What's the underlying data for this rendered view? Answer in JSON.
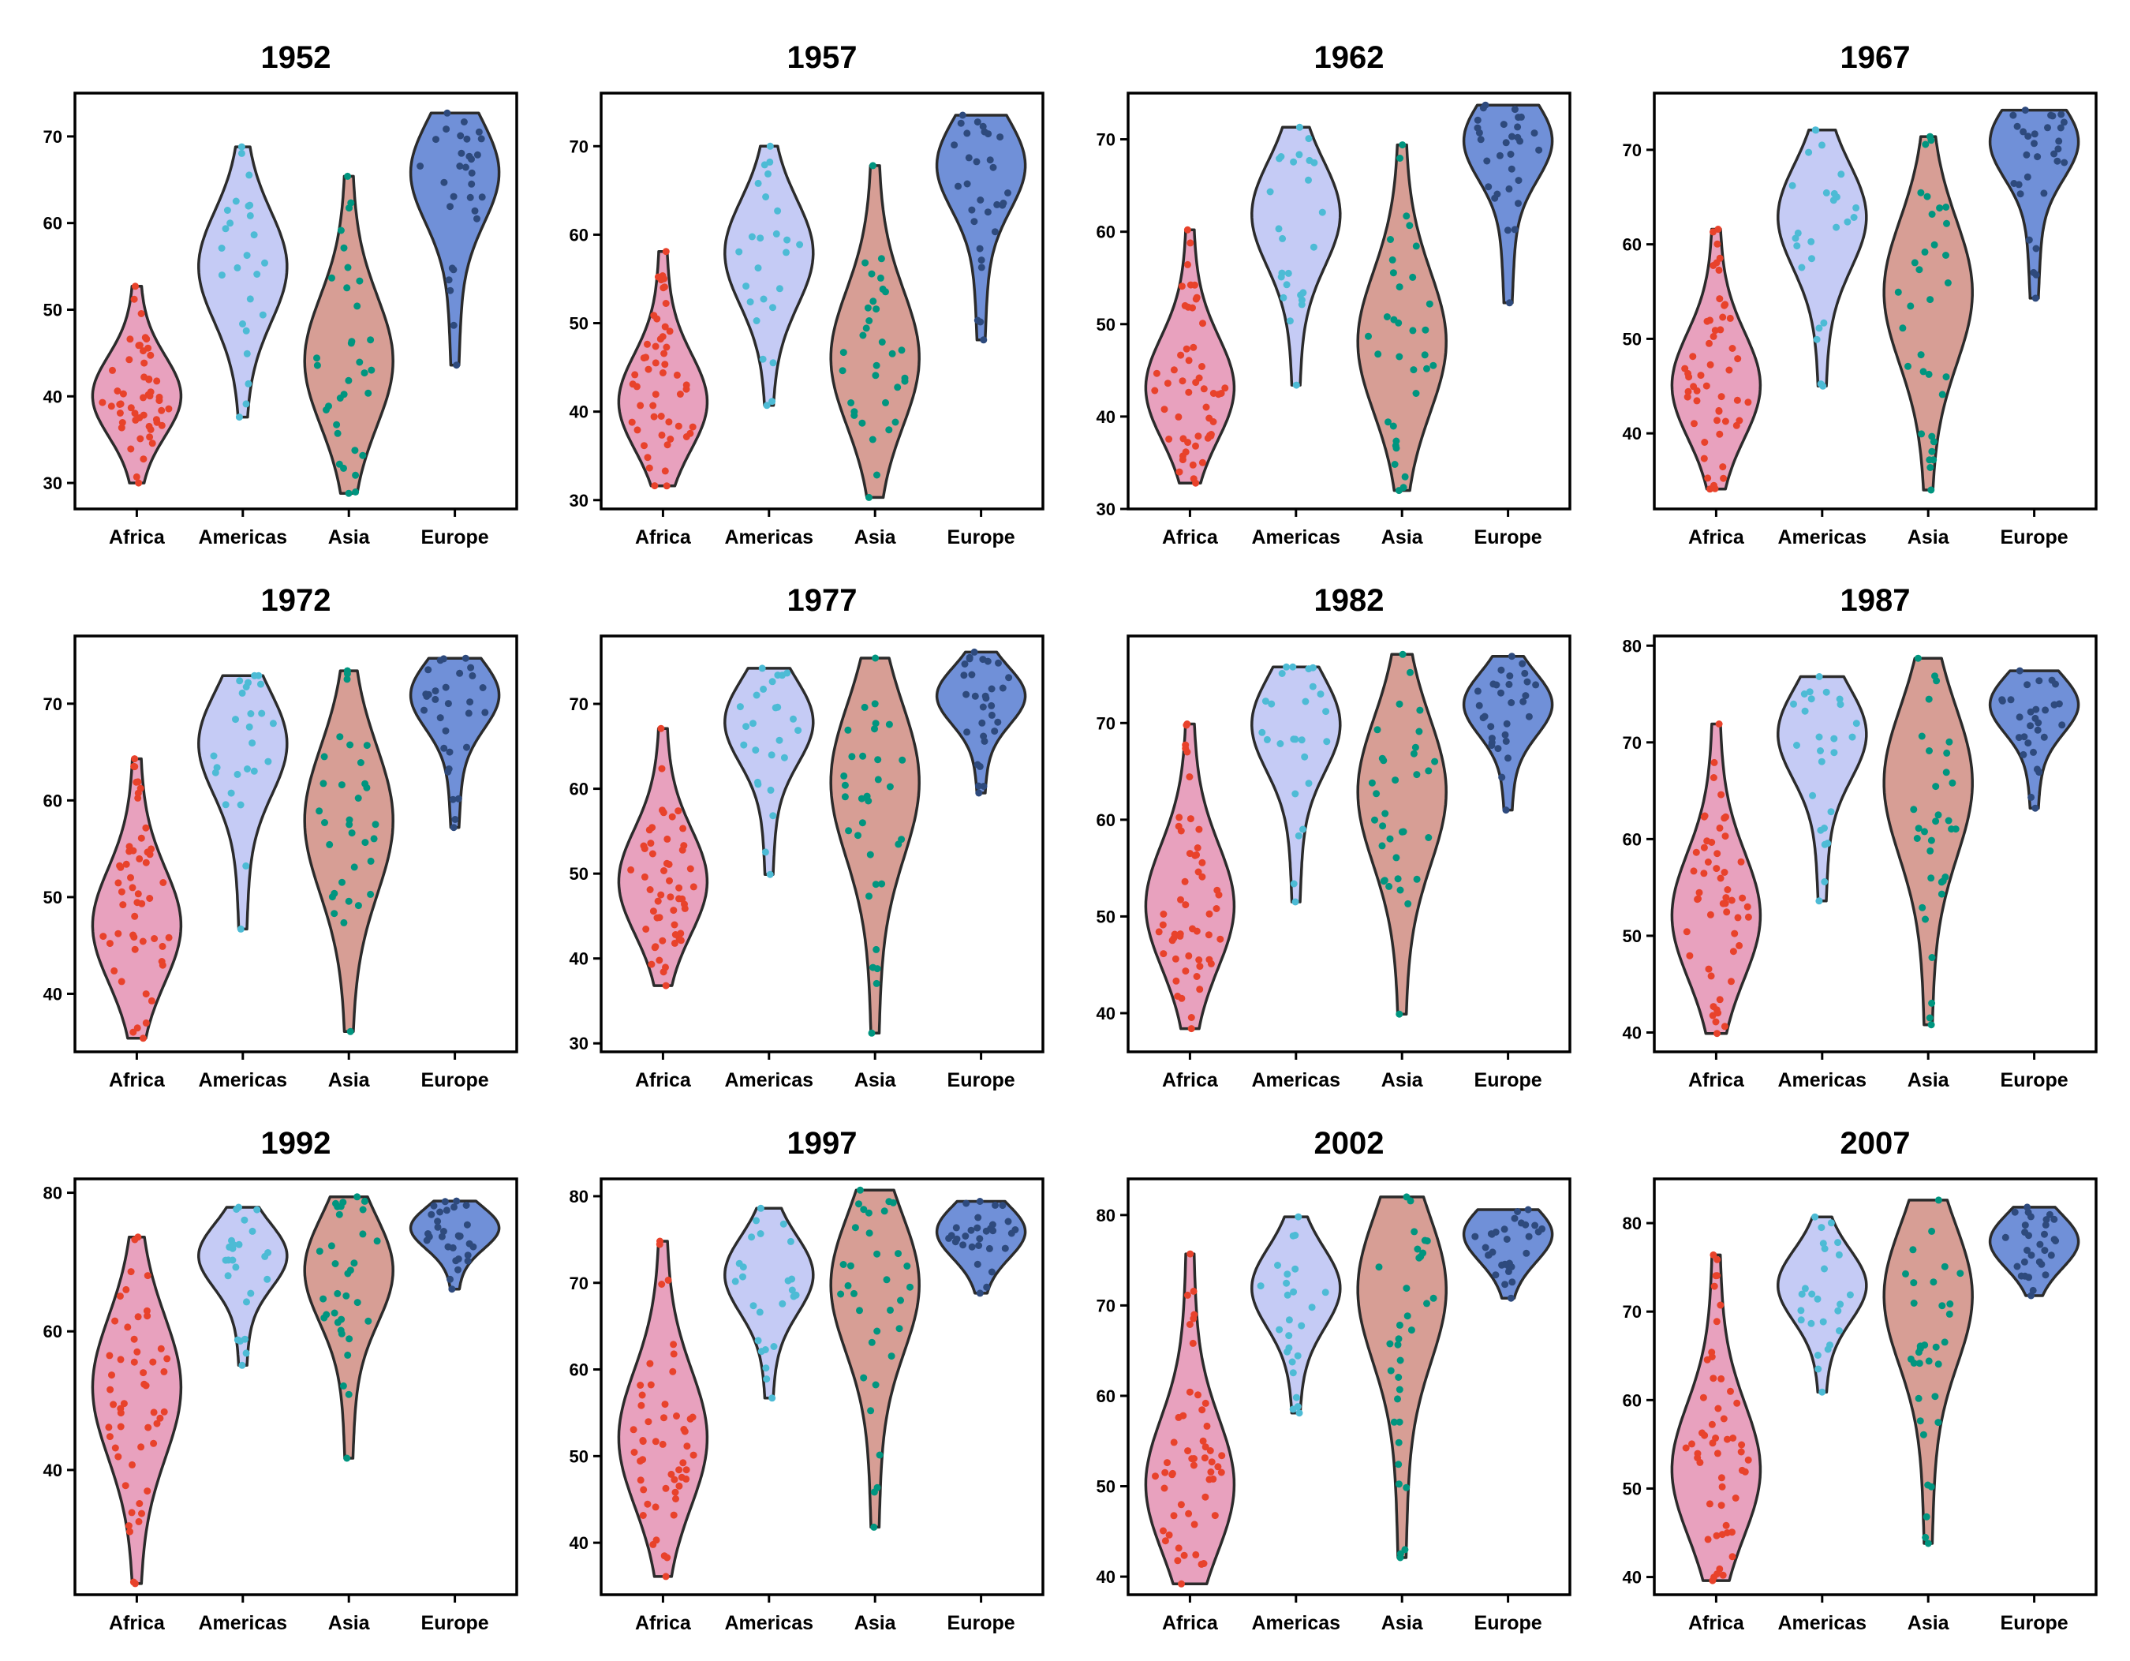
{
  "chart_data": {
    "type": "violin",
    "categories": [
      "Africa",
      "Americas",
      "Asia",
      "Europe"
    ],
    "colors": {
      "Africa": {
        "fill": "#E8A1BE",
        "point": "#E8422B"
      },
      "Americas": {
        "fill": "#C5CBF5",
        "point": "#4DBBD5"
      },
      "Asia": {
        "fill": "#D79E95",
        "point": "#00957F"
      },
      "Europe": {
        "fill": "#7090D8",
        "point": "#2E4A7D"
      }
    },
    "panels": [
      {
        "title": "1952",
        "yticks": [
          30,
          40,
          50,
          60,
          70
        ],
        "ylim": [
          27,
          75
        ],
        "violins": [
          {
            "category": "Africa",
            "min": 30.0,
            "max": 52.7,
            "mode": 40.0,
            "n": 52
          },
          {
            "category": "Americas",
            "min": 37.6,
            "max": 68.8,
            "mode": 55.0,
            "n": 25
          },
          {
            "category": "Asia",
            "min": 28.8,
            "max": 65.4,
            "mode": 44.0,
            "n": 33
          },
          {
            "category": "Europe",
            "min": 43.6,
            "max": 72.7,
            "mode": 66.0,
            "n": 30
          }
        ]
      },
      {
        "title": "1957",
        "yticks": [
          30,
          40,
          50,
          60,
          70
        ],
        "ylim": [
          29,
          76
        ],
        "violins": [
          {
            "category": "Africa",
            "min": 31.6,
            "max": 58.1,
            "mode": 41.0,
            "n": 52
          },
          {
            "category": "Americas",
            "min": 40.7,
            "max": 70.0,
            "mode": 58.0,
            "n": 25
          },
          {
            "category": "Asia",
            "min": 30.3,
            "max": 67.8,
            "mode": 46.0,
            "n": 33
          },
          {
            "category": "Europe",
            "min": 48.1,
            "max": 73.5,
            "mode": 68.0,
            "n": 30
          }
        ]
      },
      {
        "title": "1962",
        "yticks": [
          30,
          40,
          50,
          60,
          70
        ],
        "ylim": [
          30,
          75
        ],
        "violins": [
          {
            "category": "Africa",
            "min": 32.8,
            "max": 60.2,
            "mode": 43.0,
            "n": 52
          },
          {
            "category": "Americas",
            "min": 43.4,
            "max": 71.3,
            "mode": 62.0,
            "n": 25
          },
          {
            "category": "Asia",
            "min": 32.0,
            "max": 69.4,
            "mode": 48.0,
            "n": 33
          },
          {
            "category": "Europe",
            "min": 52.3,
            "max": 73.7,
            "mode": 70.0,
            "n": 30
          }
        ]
      },
      {
        "title": "1967",
        "yticks": [
          40,
          50,
          60,
          70
        ],
        "ylim": [
          32,
          76
        ],
        "violins": [
          {
            "category": "Africa",
            "min": 34.1,
            "max": 61.6,
            "mode": 45.0,
            "n": 52
          },
          {
            "category": "Americas",
            "min": 45.0,
            "max": 72.1,
            "mode": 63.0,
            "n": 25
          },
          {
            "category": "Asia",
            "min": 34.0,
            "max": 71.4,
            "mode": 55.0,
            "n": 33
          },
          {
            "category": "Europe",
            "min": 54.3,
            "max": 74.2,
            "mode": 71.0,
            "n": 30
          }
        ]
      },
      {
        "title": "1972",
        "yticks": [
          40,
          50,
          60,
          70
        ],
        "ylim": [
          34,
          77
        ],
        "violins": [
          {
            "category": "Africa",
            "min": 35.4,
            "max": 64.3,
            "mode": 47.0,
            "n": 52
          },
          {
            "category": "Americas",
            "min": 46.7,
            "max": 72.9,
            "mode": 66.0,
            "n": 25
          },
          {
            "category": "Asia",
            "min": 36.1,
            "max": 73.4,
            "mode": 58.0,
            "n": 33
          },
          {
            "category": "Europe",
            "min": 57.2,
            "max": 74.7,
            "mode": 71.0,
            "n": 30
          }
        ]
      },
      {
        "title": "1977",
        "yticks": [
          30,
          40,
          50,
          60,
          70
        ],
        "ylim": [
          29,
          78
        ],
        "violins": [
          {
            "category": "Africa",
            "min": 36.8,
            "max": 67.1,
            "mode": 49.0,
            "n": 52
          },
          {
            "category": "Americas",
            "min": 49.9,
            "max": 74.2,
            "mode": 68.0,
            "n": 25
          },
          {
            "category": "Asia",
            "min": 31.2,
            "max": 75.4,
            "mode": 61.0,
            "n": 33
          },
          {
            "category": "Europe",
            "min": 59.5,
            "max": 76.1,
            "mode": 71.0,
            "n": 30
          }
        ]
      },
      {
        "title": "1982",
        "yticks": [
          40,
          50,
          60,
          70
        ],
        "ylim": [
          36,
          79
        ],
        "violins": [
          {
            "category": "Africa",
            "min": 38.4,
            "max": 69.9,
            "mode": 51.0,
            "n": 52
          },
          {
            "category": "Americas",
            "min": 51.5,
            "max": 75.8,
            "mode": 70.0,
            "n": 25
          },
          {
            "category": "Asia",
            "min": 39.9,
            "max": 77.1,
            "mode": 63.0,
            "n": 33
          },
          {
            "category": "Europe",
            "min": 61.0,
            "max": 76.9,
            "mode": 72.0,
            "n": 30
          }
        ]
      },
      {
        "title": "1987",
        "yticks": [
          40,
          50,
          60,
          70,
          80
        ],
        "ylim": [
          38,
          81
        ],
        "violins": [
          {
            "category": "Africa",
            "min": 39.9,
            "max": 71.9,
            "mode": 52.0,
            "n": 52
          },
          {
            "category": "Americas",
            "min": 53.6,
            "max": 76.8,
            "mode": 71.0,
            "n": 25
          },
          {
            "category": "Asia",
            "min": 40.8,
            "max": 78.7,
            "mode": 66.0,
            "n": 33
          },
          {
            "category": "Europe",
            "min": 63.2,
            "max": 77.4,
            "mode": 74.0,
            "n": 30
          }
        ]
      },
      {
        "title": "1992",
        "yticks": [
          40,
          60,
          80
        ],
        "ylim": [
          22,
          82
        ],
        "violins": [
          {
            "category": "Africa",
            "min": 23.6,
            "max": 73.6,
            "mode": 52.0,
            "n": 52
          },
          {
            "category": "Americas",
            "min": 55.1,
            "max": 77.9,
            "mode": 71.0,
            "n": 25
          },
          {
            "category": "Asia",
            "min": 41.7,
            "max": 79.4,
            "mode": 69.0,
            "n": 33
          },
          {
            "category": "Europe",
            "min": 66.1,
            "max": 78.8,
            "mode": 75.0,
            "n": 30
          }
        ]
      },
      {
        "title": "1997",
        "yticks": [
          40,
          50,
          60,
          70,
          80
        ],
        "ylim": [
          34,
          82
        ],
        "violins": [
          {
            "category": "Africa",
            "min": 36.1,
            "max": 74.8,
            "mode": 52.0,
            "n": 52
          },
          {
            "category": "Americas",
            "min": 56.7,
            "max": 78.6,
            "mode": 71.0,
            "n": 25
          },
          {
            "category": "Asia",
            "min": 41.8,
            "max": 80.7,
            "mode": 70.0,
            "n": 33
          },
          {
            "category": "Europe",
            "min": 68.8,
            "max": 79.4,
            "mode": 76.0,
            "n": 30
          }
        ]
      },
      {
        "title": "2002",
        "yticks": [
          40,
          50,
          60,
          70,
          80
        ],
        "ylim": [
          38,
          84
        ],
        "violins": [
          {
            "category": "Africa",
            "min": 39.2,
            "max": 75.7,
            "mode": 50.0,
            "n": 52
          },
          {
            "category": "Americas",
            "min": 58.1,
            "max": 79.8,
            "mode": 72.0,
            "n": 25
          },
          {
            "category": "Asia",
            "min": 42.1,
            "max": 82.0,
            "mode": 72.0,
            "n": 33
          },
          {
            "category": "Europe",
            "min": 70.8,
            "max": 80.6,
            "mode": 78.0,
            "n": 30
          }
        ]
      },
      {
        "title": "2007",
        "yticks": [
          40,
          50,
          60,
          70,
          80
        ],
        "ylim": [
          38,
          85
        ],
        "violins": [
          {
            "category": "Africa",
            "min": 39.6,
            "max": 76.4,
            "mode": 52.0,
            "n": 52
          },
          {
            "category": "Americas",
            "min": 60.9,
            "max": 80.7,
            "mode": 73.0,
            "n": 25
          },
          {
            "category": "Asia",
            "min": 43.8,
            "max": 82.6,
            "mode": 72.0,
            "n": 33
          },
          {
            "category": "Europe",
            "min": 71.8,
            "max": 81.8,
            "mode": 78.0,
            "n": 30
          }
        ]
      }
    ]
  }
}
